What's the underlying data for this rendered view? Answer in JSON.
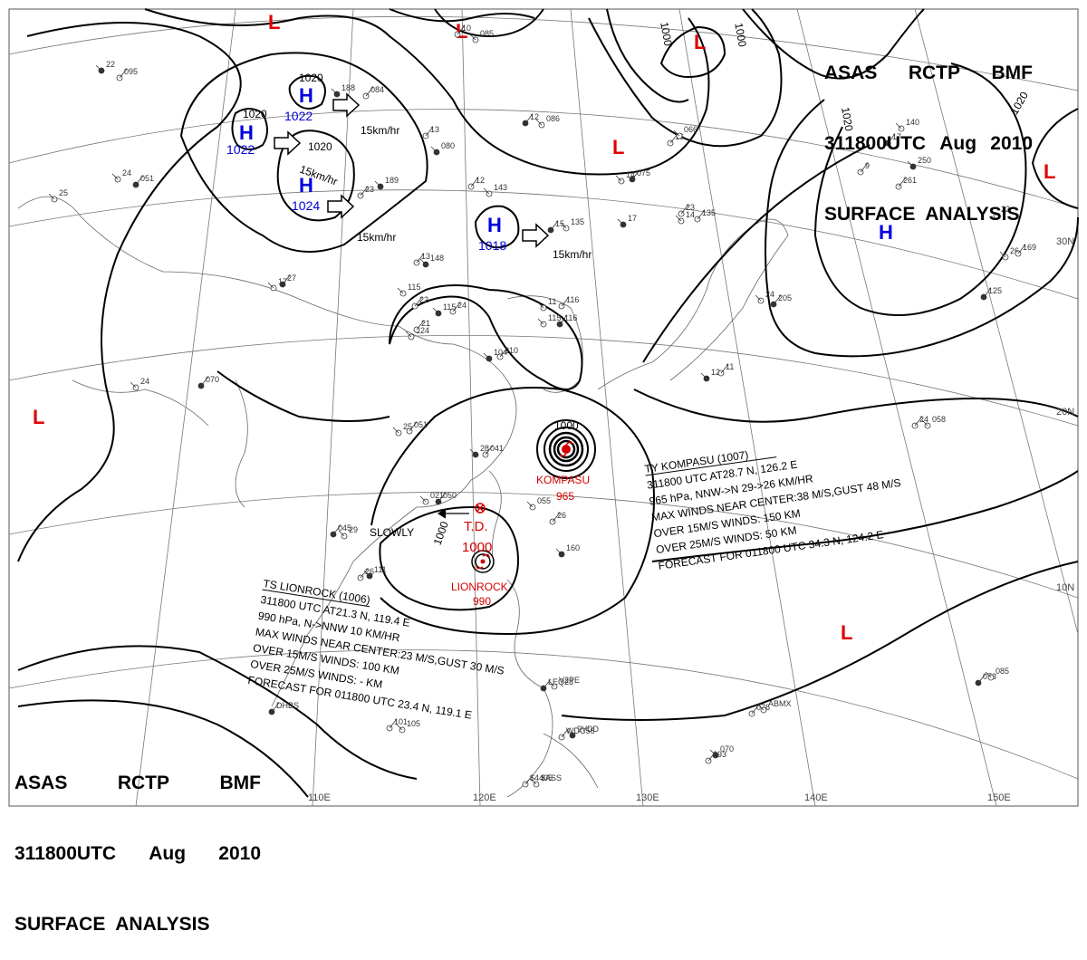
{
  "header_top_right": {
    "line1": [
      "ASAS",
      "RCTP",
      "BMF"
    ],
    "line2": [
      "311800UTC",
      "Aug",
      "2010"
    ],
    "line3": "SURFACE  ANALYSIS"
  },
  "header_bottom_left": {
    "line1": [
      "ASAS",
      "RCTP",
      "BMF"
    ],
    "line2": [
      "311800UTC",
      "Aug",
      "2010"
    ],
    "line3": "SURFACE  ANALYSIS"
  },
  "longitude_labels": [
    "110E",
    "120E",
    "130E",
    "140E",
    "150E"
  ],
  "latitude_labels": [
    "30N",
    "20N",
    "10N"
  ],
  "pressure_centers": {
    "low_symbol": "L",
    "high_symbol": "H",
    "highs": [
      {
        "value": "1022"
      },
      {
        "value": "1022"
      },
      {
        "value": "1024"
      },
      {
        "value": "1018"
      }
    ]
  },
  "isobar_labels": [
    "1020",
    "1020",
    "1020",
    "1020",
    "1000",
    "1000",
    "1020",
    "1020",
    "1000",
    "1000"
  ],
  "motion_labels": [
    "15km/hr",
    "15km/hr",
    "15km/hr",
    "15km/hr",
    "SLOWLY"
  ],
  "typhoon_kompasu": {
    "name": "KOMPASU",
    "pressure": "965",
    "center_isobar": "1000",
    "info": [
      "TY  KOMPASU  (1007)",
      "311800 UTC  AT28.7 N, 126.2 E",
      "965 hPa, NNW->N  29->26 KM/HR",
      "MAX WINDS NEAR CENTER:38 M/S,GUST 48 M/S",
      "OVER 15M/S WINDS: 150 KM",
      "OVER 25M/S WINDS: 50 KM",
      "FORECAST FOR 011800 UTC 34.3 N, 124.2 E"
    ]
  },
  "storm_lionrock": {
    "name": "LIONROCK",
    "pressure": "990",
    "info": [
      "TS  LIONROCK  (1006)",
      "311800 UTC  AT21.3 N, 119.4 E",
      "990 hPa, N->NNW  10 KM/HR",
      "MAX WINDS NEAR CENTER:23 M/S,GUST  30 M/S",
      "OVER 15M/S WINDS: 100 KM",
      "OVER 25M/S WINDS: - KM",
      "FORECAST FOR 011800 UTC 23.4 N, 119.1 E"
    ]
  },
  "tropical_depression": {
    "label": "T.D.",
    "pressure": "1000"
  },
  "station_plots": [
    "22",
    "095",
    "24",
    "051",
    "25",
    "084",
    "188",
    "10",
    "085",
    "12",
    "086",
    "13",
    "080",
    "16",
    "066",
    "17",
    "140",
    "23",
    "189",
    "12",
    "143",
    "15",
    "135",
    "9",
    "250",
    "261",
    "14",
    "075",
    "14",
    "135",
    "17",
    "23",
    "22",
    "125",
    "11",
    "116",
    "148",
    "13",
    "17",
    "27",
    "115",
    "22",
    "115",
    "24",
    "115",
    "116",
    "124",
    "21",
    "104",
    "210",
    "24",
    "205",
    "26",
    "169",
    "12",
    "11",
    "24",
    "070",
    "25",
    "051",
    "28",
    "041",
    "021",
    "050",
    "055",
    "26",
    "160",
    "24",
    "058",
    "045",
    "29",
    "26",
    "111",
    "101",
    "105",
    "073",
    "085",
    "093",
    "070",
    "076",
    "ABMX",
    "LEQ23",
    "V2PE",
    "WDC56",
    "9VDD",
    "$4405",
    "$ASS",
    "DHBS"
  ]
}
